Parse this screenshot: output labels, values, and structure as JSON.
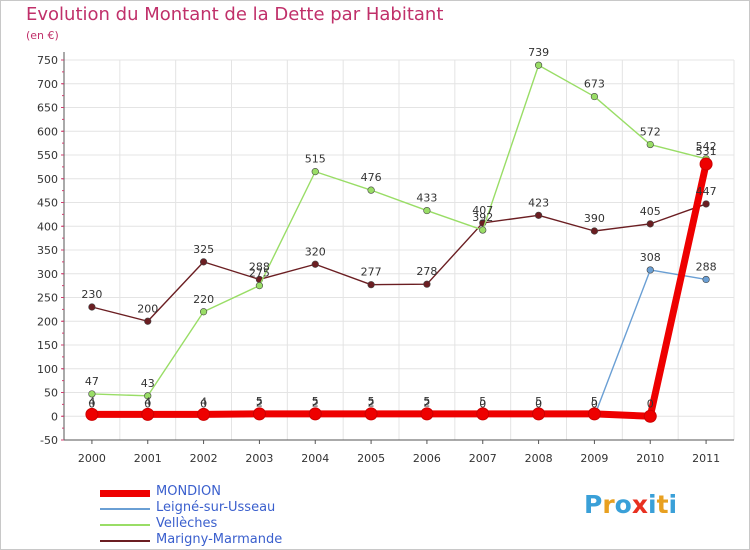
{
  "title": "Evolution du Montant de la Dette par Habitant",
  "subtitle": "(en €)",
  "brand": {
    "text": "Proxiti",
    "letters": [
      "P",
      "r",
      "o",
      "x",
      "i",
      "t",
      "i"
    ],
    "colors": [
      "#3aa0d8",
      "#e8a020",
      "#3aa0d8",
      "#e83020",
      "#3aa0d8",
      "#e8a020",
      "#3aa0d8"
    ]
  },
  "chart_data": {
    "type": "line",
    "x": [
      "2000",
      "2001",
      "2002",
      "2003",
      "2004",
      "2005",
      "2006",
      "2007",
      "2008",
      "2009",
      "2010",
      "2011"
    ],
    "ylim": [
      -50,
      750
    ],
    "yticks": [
      -50,
      0,
      50,
      100,
      150,
      200,
      250,
      300,
      350,
      400,
      450,
      500,
      550,
      600,
      650,
      700,
      750
    ],
    "grid": true,
    "legend_position": "bottom-left",
    "series": [
      {
        "name": "MONDION",
        "color": "#ee0000",
        "values": [
          4,
          4,
          4,
          5,
          5,
          5,
          5,
          5,
          5,
          5,
          0,
          531
        ],
        "labels": [
          "4",
          "4",
          "4",
          "5",
          "5",
          "5",
          "5",
          "5",
          "5",
          "5",
          "0",
          "531"
        ]
      },
      {
        "name": "Leigné-sur-Usseau",
        "color": "#6a9fd4",
        "values": [
          0,
          0,
          0,
          2,
          2,
          2,
          2,
          0,
          0,
          0,
          308,
          288
        ],
        "labels": [
          "0",
          "0",
          "0",
          "2",
          "2",
          "2",
          "2",
          "0",
          "0",
          "0",
          "308",
          "288"
        ]
      },
      {
        "name": "Vellèches",
        "color": "#99dd66",
        "values": [
          47,
          43,
          220,
          275,
          515,
          476,
          433,
          392,
          739,
          673,
          572,
          542
        ],
        "labels": [
          "47",
          "43",
          "220",
          "275",
          "515",
          "476",
          "433",
          "392",
          "739",
          "673",
          "572",
          "542"
        ]
      },
      {
        "name": "Marigny-Marmande",
        "color": "#6b1e22",
        "values": [
          230,
          200,
          325,
          288,
          320,
          277,
          278,
          407,
          423,
          390,
          405,
          447
        ],
        "labels": [
          "230",
          "200",
          "325",
          "288",
          "320",
          "277",
          "278",
          "407",
          "423",
          "390",
          "405",
          "447"
        ]
      }
    ]
  }
}
